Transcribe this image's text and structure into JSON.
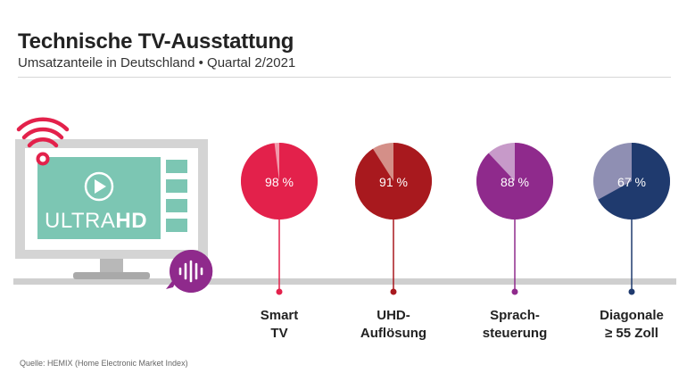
{
  "header": {
    "title": "Technische TV-Ausstattung",
    "subtitle": "Umsatzanteile in Deutschland • Quartal 2/2021"
  },
  "footer": {
    "source": "Quelle: HEMIX (Home Electronic Market Index)"
  },
  "illustration": {
    "tv_logo_light": "ULTRA",
    "tv_logo_bold": "HD",
    "icons": [
      "wifi-icon",
      "play-icon",
      "voice-assistant-icon"
    ]
  },
  "colors": {
    "accent_smart_tv": "#e3214b",
    "accent_uhd": "#a8191e",
    "accent_sprach": "#8f2a8c",
    "accent_diagonale": "#1f3a6e",
    "baseline": "#cfcfcf",
    "tv_screen": "#7cc6b3"
  },
  "chart_data": {
    "type": "pie",
    "title": "Technische TV-Ausstattung",
    "subtitle": "Umsatzanteile in Deutschland • Quartal 2/2021",
    "categories": [
      "Smart TV",
      "UHD-Auflösung",
      "Sprachsteuerung",
      "Diagonale ≥ 55 Zoll"
    ],
    "values": [
      98,
      91,
      88,
      67
    ],
    "value_labels": [
      "98 %",
      "91 %",
      "88 %",
      "67 %"
    ],
    "label_lines": [
      [
        "Smart",
        "TV"
      ],
      [
        "UHD-",
        "Auflösung"
      ],
      [
        "Sprach-",
        "steuerung"
      ],
      [
        "Diagonale",
        "≥ 55 Zoll"
      ]
    ],
    "colors": [
      "#e3214b",
      "#a8191e",
      "#8f2a8c",
      "#1f3a6e"
    ],
    "remainder_colors": [
      "#f19aab",
      "#d48f88",
      "#c79ac9",
      "#8f8fb3"
    ],
    "unit": "%"
  }
}
